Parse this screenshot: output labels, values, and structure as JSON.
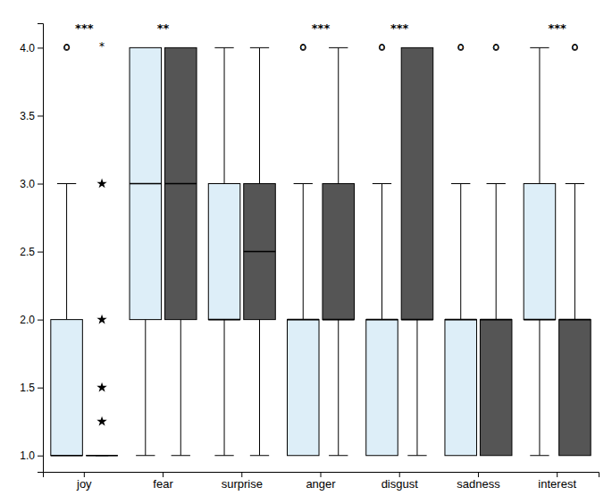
{
  "chart_data": {
    "type": "box",
    "categories": [
      "joy",
      "fear",
      "surprise",
      "anger",
      "disgust",
      "sadness",
      "interest"
    ],
    "ylim": [
      0.88,
      4.18
    ],
    "yticks": [
      {
        "value": 1.0,
        "label": "1.0"
      },
      {
        "value": 1.5,
        "label": "1.5"
      },
      {
        "value": 2.0,
        "label": "2.0"
      },
      {
        "value": 2.5,
        "label": "2.5"
      },
      {
        "value": 3.0,
        "label": "3.0"
      },
      {
        "value": 3.5,
        "label": "3.5"
      },
      {
        "value": 4.0,
        "label": "4.0"
      }
    ],
    "series": [
      {
        "color": "#ddeef8",
        "boxes": [
          {
            "q1": 1.0,
            "median": 1.0,
            "q3": 2.0,
            "whislo": 1.0,
            "whishi": 3.0,
            "outliers": [
              {
                "value": 4.0,
                "marker": "circle"
              }
            ]
          },
          {
            "q1": 2.0,
            "median": 3.0,
            "q3": 4.0,
            "whislo": 1.0,
            "whishi": 4.0
          },
          {
            "q1": 2.0,
            "median": 2.0,
            "q3": 3.0,
            "whislo": 1.0,
            "whishi": 4.0
          },
          {
            "q1": 1.0,
            "median": 2.0,
            "q3": 2.0,
            "whislo": 1.0,
            "whishi": 3.0,
            "outliers": [
              {
                "value": 4.0,
                "marker": "circle"
              }
            ]
          },
          {
            "q1": 1.0,
            "median": 2.0,
            "q3": 2.0,
            "whislo": 1.0,
            "whishi": 3.0,
            "outliers": [
              {
                "value": 4.0,
                "marker": "circle"
              }
            ]
          },
          {
            "q1": 1.0,
            "median": 2.0,
            "q3": 2.0,
            "whislo": 1.0,
            "whishi": 3.0,
            "outliers": [
              {
                "value": 4.0,
                "marker": "circle"
              }
            ]
          },
          {
            "q1": 2.0,
            "median": 2.0,
            "q3": 3.0,
            "whislo": 1.0,
            "whishi": 4.0
          }
        ]
      },
      {
        "color": "#555555",
        "boxes": [
          {
            "q1": 1.0,
            "median": 1.0,
            "q3": 1.0,
            "whislo": 1.0,
            "whishi": 1.0,
            "outliers": [
              {
                "value": 3.0,
                "marker": "star"
              },
              {
                "value": 2.0,
                "marker": "star"
              },
              {
                "value": 1.5,
                "marker": "star"
              },
              {
                "value": 1.25,
                "marker": "star"
              },
              {
                "value": 1.0,
                "marker": "dash"
              }
            ]
          },
          {
            "q1": 2.0,
            "median": 3.0,
            "q3": 4.0,
            "whislo": 1.0,
            "whishi": 4.0
          },
          {
            "q1": 2.0,
            "median": 2.5,
            "q3": 3.0,
            "whislo": 1.0,
            "whishi": 4.0
          },
          {
            "q1": 2.0,
            "median": 2.0,
            "q3": 3.0,
            "whislo": 1.0,
            "whishi": 4.0
          },
          {
            "q1": 2.0,
            "median": 2.0,
            "q3": 4.0,
            "whislo": 1.0,
            "whishi": 4.0
          },
          {
            "q1": 1.0,
            "median": 2.0,
            "q3": 2.0,
            "whislo": 1.0,
            "whishi": 3.0,
            "outliers": [
              {
                "value": 4.0,
                "marker": "circle"
              }
            ]
          },
          {
            "q1": 1.0,
            "median": 2.0,
            "q3": 2.0,
            "whislo": 1.0,
            "whishi": 3.0,
            "outliers": [
              {
                "value": 4.0,
                "marker": "circle"
              }
            ]
          }
        ]
      }
    ],
    "annotations": [
      {
        "text": "***",
        "category": "joy",
        "y": 4.1
      },
      {
        "text": "o",
        "category": "joy",
        "series": 0,
        "y": 3.97
      },
      {
        "text": "*",
        "category": "joy",
        "series": 1,
        "y": 3.97
      },
      {
        "text": "**",
        "category": "fear",
        "y": 4.1
      },
      {
        "text": "***",
        "category": "anger",
        "y": 4.1
      },
      {
        "text": "o",
        "category": "anger",
        "series": 0,
        "y": 3.97
      },
      {
        "text": "***",
        "category": "disgust",
        "y": 4.1
      },
      {
        "text": "o",
        "category": "disgust",
        "series": 0,
        "y": 3.97
      },
      {
        "text": "o",
        "category": "sadness",
        "series": 0,
        "y": 3.97
      },
      {
        "text": "o",
        "category": "sadness",
        "series": 1,
        "y": 3.97
      },
      {
        "text": "***",
        "category": "interest",
        "y": 4.1
      },
      {
        "text": "o",
        "category": "interest",
        "series": 1,
        "y": 3.97
      }
    ]
  }
}
